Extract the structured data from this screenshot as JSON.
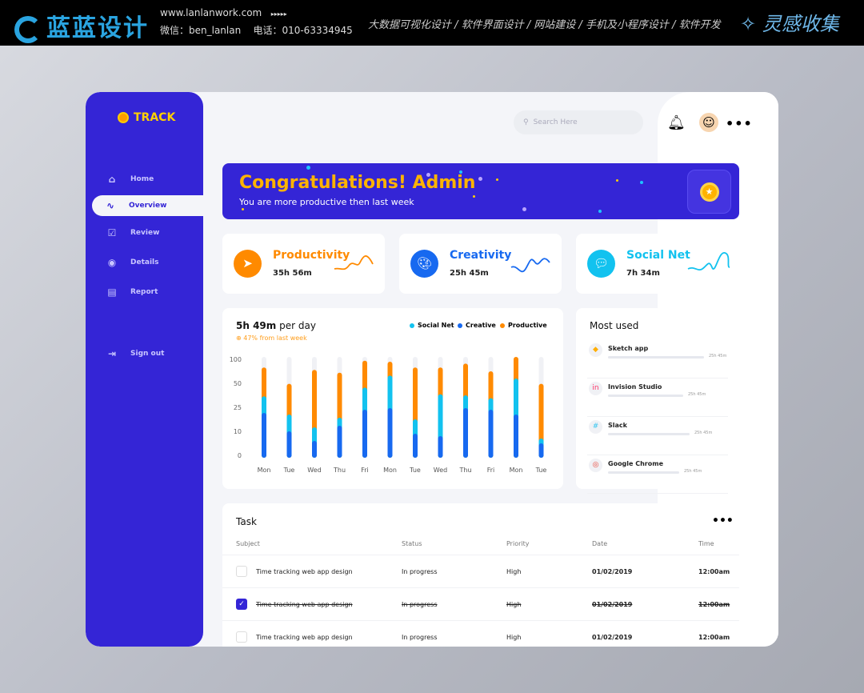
{
  "topbar": {
    "logo": "蓝蓝设计",
    "website": "www.lanlanwork.com",
    "arrows": "▸▸▸▸▸",
    "contact": "微信：ben_lanlan    电话：010-63334945",
    "services": "大数据可视化设计 / 软件界面设计 / 网站建设 / 手机及小程序设计 / 软件开发",
    "brand": "灵感收集"
  },
  "sidebar": {
    "brand": "TRACK",
    "items": [
      {
        "label": "Home",
        "icon": "home-icon"
      },
      {
        "label": "Overview",
        "icon": "activity-icon",
        "active": true
      },
      {
        "label": "Review",
        "icon": "checkbox-icon"
      },
      {
        "label": "Details",
        "icon": "eye-icon"
      },
      {
        "label": "Report",
        "icon": "document-icon"
      }
    ],
    "signout": "Sign out"
  },
  "header": {
    "search_placeholder": "Search Here"
  },
  "banner": {
    "title": "Congratulations! Admin",
    "subtitle": "You are more productive then last week"
  },
  "stats": [
    {
      "label": "Productivity",
      "value": "35h 56m",
      "color": "#ff8a00"
    },
    {
      "label": "Creativity",
      "value": "25h 45m",
      "color": "#1769f0"
    },
    {
      "label": "Social Net",
      "value": "7h 34m",
      "color": "#12c2ef"
    }
  ],
  "chart_data": {
    "type": "bar",
    "stacked": true,
    "title_bold": "5h 49m",
    "title_rest": " per day",
    "subtitle": "47% from last week",
    "y_ticks": [
      100,
      50,
      25,
      10,
      0
    ],
    "ylim": [
      0,
      100
    ],
    "categories": [
      "Mon",
      "Tue",
      "Wed",
      "Thu",
      "Fri",
      "Mon",
      "Tue",
      "Wed",
      "Thu",
      "Fri",
      "Mon",
      "Tue"
    ],
    "series": [
      {
        "name": "Creative",
        "color": "#1769f0",
        "values": [
          20,
          9,
          5,
          12,
          22,
          23,
          8,
          7,
          23,
          22,
          19,
          4
        ]
      },
      {
        "name": "Social Net",
        "color": "#12c2ef",
        "values": [
          14,
          10,
          6,
          5,
          21,
          38,
          8,
          29,
          12,
          10,
          36,
          2
        ]
      },
      {
        "name": "Productive",
        "color": "#ff8a00",
        "values": [
          44,
          28,
          62,
          50,
          49,
          29,
          62,
          42,
          51,
          38,
          45,
          41
        ]
      }
    ],
    "legend": [
      "Social Net",
      "Creative",
      "Productive"
    ],
    "legend_position": "top-right",
    "grid": false
  },
  "most_used": {
    "title": "Most used",
    "apps": [
      {
        "name": "Sketch app",
        "time": "25h 45m",
        "fill": 1.0,
        "icon": "sketch-icon"
      },
      {
        "name": "Invision Studio",
        "time": "25h 45m",
        "fill": 0.78,
        "icon": "invision-icon"
      },
      {
        "name": "Slack",
        "time": "25h 45m",
        "fill": 0.85,
        "icon": "slack-icon"
      },
      {
        "name": "Google Chrome",
        "time": "25h 45m",
        "fill": 0.74,
        "icon": "chrome-icon"
      }
    ]
  },
  "task": {
    "title": "Task",
    "columns": [
      "Subject",
      "Status",
      "Priority",
      "Date",
      "Time"
    ],
    "rows": [
      {
        "subject": "Time tracking web app design",
        "status": "In progress",
        "priority": "High",
        "date": "01/02/2019",
        "time": "12:00am",
        "done": false
      },
      {
        "subject": "Time tracking web app design",
        "status": "In progress",
        "priority": "High",
        "date": "01/02/2019",
        "time": "12:00am",
        "done": true
      },
      {
        "subject": "Time tracking web app design",
        "status": "In progress",
        "priority": "High",
        "date": "01/02/2019",
        "time": "12:00am",
        "done": false
      }
    ]
  }
}
